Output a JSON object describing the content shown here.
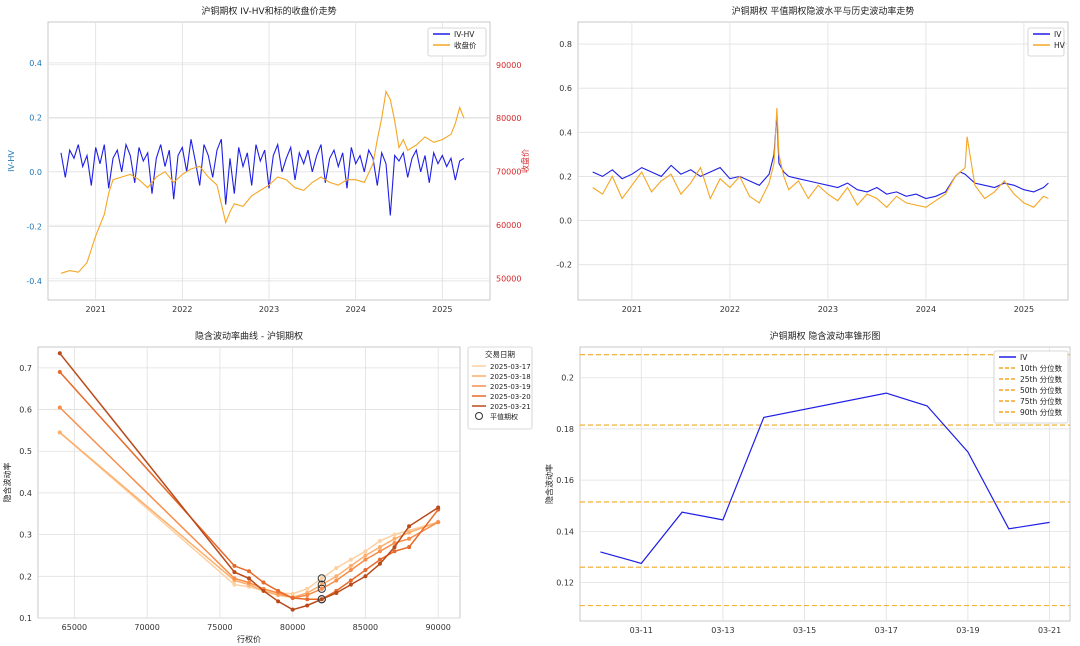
{
  "colors": {
    "blue": "#1f1fe6",
    "orange": "#f5a623",
    "red_axis": "#d62728",
    "blue_axis": "#1f77b4",
    "grid": "#e0e0e0",
    "spine": "#bbbbbb",
    "dates": [
      "#fdd0a2",
      "#fdae6b",
      "#f88d4a",
      "#e6692a",
      "#b94a1a"
    ]
  },
  "chart_data": [
    {
      "id": "c1",
      "type": "line",
      "title": "沪铜期权 IV-HV和标的收盘价走势",
      "ylabel": "IV-HV",
      "ylabel2": "收盘价",
      "xlim": [
        2020.45,
        2025.55
      ],
      "xticks": [
        "2021",
        "2022",
        "2023",
        "2024",
        "2025"
      ],
      "xtick_values": [
        2021,
        2022,
        2023,
        2024,
        2025
      ],
      "ylim": [
        -0.47,
        0.55
      ],
      "yticks": [
        -0.4,
        -0.2,
        0.0,
        0.2,
        0.4
      ],
      "y2lim": [
        46000,
        98000
      ],
      "y2ticks": [
        50000,
        60000,
        70000,
        80000,
        90000
      ],
      "grid": true,
      "legend_position": "top-right",
      "series": [
        {
          "name": "IV-HV",
          "axis": "left",
          "color_key": "blue",
          "x": [
            2020.6,
            2020.65,
            2020.7,
            2020.75,
            2020.8,
            2020.85,
            2020.9,
            2020.95,
            2021.0,
            2021.05,
            2021.1,
            2021.15,
            2021.2,
            2021.25,
            2021.3,
            2021.35,
            2021.4,
            2021.45,
            2021.5,
            2021.55,
            2021.6,
            2021.65,
            2021.7,
            2021.75,
            2021.8,
            2021.85,
            2021.9,
            2021.95,
            2022.0,
            2022.05,
            2022.1,
            2022.15,
            2022.2,
            2022.25,
            2022.3,
            2022.35,
            2022.4,
            2022.45,
            2022.5,
            2022.55,
            2022.6,
            2022.65,
            2022.7,
            2022.75,
            2022.8,
            2022.85,
            2022.9,
            2022.95,
            2023.0,
            2023.05,
            2023.1,
            2023.15,
            2023.2,
            2023.25,
            2023.3,
            2023.35,
            2023.4,
            2023.45,
            2023.5,
            2023.55,
            2023.6,
            2023.65,
            2023.7,
            2023.75,
            2023.8,
            2023.85,
            2023.9,
            2023.95,
            2024.0,
            2024.05,
            2024.1,
            2024.15,
            2024.2,
            2024.25,
            2024.3,
            2024.35,
            2024.4,
            2024.45,
            2024.5,
            2024.55,
            2024.6,
            2024.65,
            2024.7,
            2024.75,
            2024.8,
            2024.85,
            2024.9,
            2024.95,
            2025.0,
            2025.05,
            2025.1,
            2025.15,
            2025.2,
            2025.25
          ],
          "y": [
            0.07,
            -0.02,
            0.08,
            0.05,
            0.1,
            0.02,
            0.06,
            -0.05,
            0.09,
            0.03,
            0.1,
            -0.06,
            0.05,
            0.08,
            0.0,
            0.1,
            0.06,
            -0.04,
            0.09,
            0.04,
            0.07,
            -0.08,
            0.05,
            0.1,
            0.02,
            0.08,
            -0.1,
            0.06,
            0.09,
            0.0,
            0.12,
            0.04,
            -0.05,
            0.1,
            0.06,
            -0.02,
            0.08,
            0.12,
            -0.12,
            0.05,
            -0.08,
            0.09,
            0.02,
            0.07,
            -0.05,
            0.1,
            0.04,
            0.08,
            -0.06,
            0.06,
            0.1,
            0.0,
            0.05,
            0.09,
            -0.03,
            0.07,
            0.03,
            0.08,
            0.0,
            0.06,
            0.1,
            -0.04,
            0.05,
            0.08,
            0.02,
            0.07,
            -0.06,
            0.09,
            0.03,
            0.06,
            0.0,
            0.08,
            0.05,
            -0.05,
            0.07,
            0.03,
            -0.16,
            0.06,
            0.04,
            0.07,
            -0.02,
            0.05,
            0.08,
            0.0,
            0.06,
            -0.04,
            0.07,
            0.03,
            0.06,
            0.02,
            0.05,
            -0.03,
            0.04,
            0.05
          ]
        },
        {
          "name": "收盘价",
          "axis": "right",
          "color_key": "orange",
          "x": [
            2020.6,
            2020.7,
            2020.8,
            2020.9,
            2021.0,
            2021.1,
            2021.15,
            2021.2,
            2021.3,
            2021.4,
            2021.5,
            2021.6,
            2021.7,
            2021.8,
            2021.9,
            2022.0,
            2022.1,
            2022.2,
            2022.25,
            2022.3,
            2022.4,
            2022.45,
            2022.5,
            2022.55,
            2022.6,
            2022.7,
            2022.8,
            2022.9,
            2023.0,
            2023.1,
            2023.2,
            2023.3,
            2023.4,
            2023.5,
            2023.6,
            2023.7,
            2023.8,
            2023.9,
            2024.0,
            2024.1,
            2024.2,
            2024.25,
            2024.3,
            2024.35,
            2024.4,
            2024.45,
            2024.5,
            2024.55,
            2024.6,
            2024.7,
            2024.8,
            2024.9,
            2025.0,
            2025.1,
            2025.15,
            2025.2,
            2025.25
          ],
          "y": [
            51000,
            51500,
            51200,
            53000,
            58000,
            62000,
            66000,
            68500,
            69000,
            69500,
            68500,
            67000,
            69000,
            70000,
            68000,
            69500,
            70500,
            71000,
            70000,
            69000,
            67500,
            64000,
            60500,
            62500,
            64000,
            63500,
            65500,
            66500,
            67500,
            69000,
            68500,
            67000,
            66500,
            68000,
            69000,
            68000,
            67500,
            68500,
            68500,
            68000,
            71500,
            76000,
            80000,
            85000,
            83500,
            79500,
            74500,
            76000,
            74000,
            75000,
            76500,
            75500,
            76000,
            77000,
            79000,
            82000,
            80000
          ]
        }
      ]
    },
    {
      "id": "c2",
      "type": "line",
      "title": "沪铜期权 平值期权隐波水平与历史波动率走势",
      "xlim": [
        2020.45,
        2025.45
      ],
      "xticks": [
        "2021",
        "2022",
        "2023",
        "2024",
        "2025"
      ],
      "xtick_values": [
        2021,
        2022,
        2023,
        2024,
        2025
      ],
      "ylim": [
        -0.36,
        0.9
      ],
      "yticks": [
        -0.2,
        0.0,
        0.2,
        0.4,
        0.6,
        0.8
      ],
      "grid": true,
      "legend_position": "top-right",
      "series": [
        {
          "name": "IV",
          "color_key": "blue",
          "x": [
            2020.6,
            2020.7,
            2020.8,
            2020.9,
            2021.0,
            2021.1,
            2021.2,
            2021.3,
            2021.4,
            2021.5,
            2021.6,
            2021.7,
            2021.8,
            2021.9,
            2022.0,
            2022.1,
            2022.2,
            2022.3,
            2022.4,
            2022.45,
            2022.48,
            2022.5,
            2022.55,
            2022.6,
            2022.7,
            2022.8,
            2022.9,
            2023.0,
            2023.1,
            2023.2,
            2023.3,
            2023.4,
            2023.5,
            2023.6,
            2023.7,
            2023.8,
            2023.9,
            2024.0,
            2024.1,
            2024.2,
            2024.3,
            2024.35,
            2024.4,
            2024.5,
            2024.6,
            2024.7,
            2024.8,
            2024.9,
            2025.0,
            2025.1,
            2025.2,
            2025.25
          ],
          "y": [
            0.22,
            0.2,
            0.23,
            0.19,
            0.21,
            0.24,
            0.22,
            0.2,
            0.25,
            0.21,
            0.23,
            0.2,
            0.22,
            0.24,
            0.19,
            0.2,
            0.18,
            0.16,
            0.21,
            0.3,
            0.48,
            0.26,
            0.22,
            0.2,
            0.19,
            0.18,
            0.17,
            0.16,
            0.15,
            0.17,
            0.14,
            0.13,
            0.15,
            0.12,
            0.13,
            0.11,
            0.12,
            0.1,
            0.11,
            0.13,
            0.2,
            0.22,
            0.21,
            0.17,
            0.16,
            0.15,
            0.17,
            0.16,
            0.14,
            0.13,
            0.15,
            0.17
          ]
        },
        {
          "name": "HV",
          "color_key": "orange",
          "x": [
            2020.6,
            2020.7,
            2020.8,
            2020.9,
            2021.0,
            2021.1,
            2021.2,
            2021.3,
            2021.4,
            2021.5,
            2021.6,
            2021.7,
            2021.8,
            2021.9,
            2022.0,
            2022.1,
            2022.2,
            2022.3,
            2022.4,
            2022.45,
            2022.48,
            2022.5,
            2022.55,
            2022.6,
            2022.7,
            2022.8,
            2022.9,
            2023.0,
            2023.1,
            2023.2,
            2023.3,
            2023.4,
            2023.5,
            2023.6,
            2023.7,
            2023.8,
            2023.9,
            2024.0,
            2024.1,
            2024.2,
            2024.3,
            2024.4,
            2024.42,
            2024.5,
            2024.6,
            2024.7,
            2024.8,
            2024.9,
            2025.0,
            2025.1,
            2025.2,
            2025.25
          ],
          "y": [
            0.15,
            0.12,
            0.2,
            0.1,
            0.16,
            0.22,
            0.13,
            0.18,
            0.21,
            0.12,
            0.17,
            0.24,
            0.1,
            0.19,
            0.15,
            0.2,
            0.11,
            0.08,
            0.17,
            0.26,
            0.51,
            0.3,
            0.2,
            0.14,
            0.18,
            0.1,
            0.16,
            0.12,
            0.09,
            0.15,
            0.07,
            0.12,
            0.1,
            0.06,
            0.11,
            0.08,
            0.07,
            0.06,
            0.09,
            0.12,
            0.2,
            0.24,
            0.38,
            0.16,
            0.1,
            0.13,
            0.18,
            0.12,
            0.08,
            0.06,
            0.11,
            0.1
          ]
        }
      ]
    },
    {
      "id": "c3",
      "type": "line",
      "title": "隐含波动率曲线 - 沪铜期权",
      "xlabel": "行权价",
      "ylabel": "隐含波动率",
      "xlim": [
        62500,
        91500
      ],
      "xticks": [
        65000,
        70000,
        75000,
        80000,
        85000,
        90000
      ],
      "ylim": [
        0.1,
        0.75
      ],
      "yticks": [
        0.1,
        0.2,
        0.3,
        0.4,
        0.5,
        0.6,
        0.7
      ],
      "grid": true,
      "legend_title": "交易日期",
      "legend_position": "outside-right",
      "atm_label": "平值期权",
      "atm_strike": 82000,
      "series": [
        {
          "name": "2025-03-17",
          "x": [
            64000,
            76000,
            77000,
            78000,
            79000,
            80000,
            81000,
            82000,
            83000,
            84000,
            85000,
            86000,
            87000,
            88000,
            90000
          ],
          "y": [
            0.545,
            0.18,
            0.175,
            0.165,
            0.16,
            0.158,
            0.17,
            0.195,
            0.22,
            0.24,
            0.26,
            0.285,
            0.3,
            0.31,
            0.33
          ]
        },
        {
          "name": "2025-03-18",
          "x": [
            64000,
            76000,
            77000,
            78000,
            79000,
            80000,
            81000,
            82000,
            83000,
            84000,
            85000,
            86000,
            87000,
            88000,
            90000
          ],
          "y": [
            0.545,
            0.19,
            0.18,
            0.165,
            0.155,
            0.15,
            0.16,
            0.18,
            0.2,
            0.225,
            0.25,
            0.27,
            0.29,
            0.305,
            0.33
          ]
        },
        {
          "name": "2025-03-19",
          "x": [
            64000,
            76000,
            77000,
            78000,
            79000,
            80000,
            81000,
            82000,
            83000,
            84000,
            85000,
            86000,
            87000,
            88000,
            90000
          ],
          "y": [
            0.605,
            0.195,
            0.185,
            0.17,
            0.16,
            0.148,
            0.155,
            0.17,
            0.19,
            0.215,
            0.24,
            0.26,
            0.28,
            0.29,
            0.33
          ]
        },
        {
          "name": "2025-03-20",
          "x": [
            64000,
            76000,
            77000,
            78000,
            79000,
            80000,
            81000,
            82000,
            83000,
            84000,
            85000,
            86000,
            87000,
            88000,
            90000
          ],
          "y": [
            0.69,
            0.225,
            0.212,
            0.185,
            0.165,
            0.148,
            0.145,
            0.145,
            0.165,
            0.19,
            0.215,
            0.24,
            0.26,
            0.27,
            0.36
          ]
        },
        {
          "name": "2025-03-21",
          "x": [
            64000,
            76000,
            77000,
            78000,
            79000,
            80000,
            81000,
            82000,
            83000,
            84000,
            85000,
            86000,
            87000,
            88000,
            90000
          ],
          "y": [
            0.735,
            0.21,
            0.195,
            0.165,
            0.14,
            0.12,
            0.13,
            0.145,
            0.16,
            0.18,
            0.2,
            0.23,
            0.27,
            0.32,
            0.365
          ]
        }
      ]
    },
    {
      "id": "c4",
      "type": "line",
      "title": "沪铜期权 隐含波动率锥形图",
      "ylabel": "隐含波动率",
      "xlim": [
        9.5,
        21.5
      ],
      "xtick_values": [
        11,
        13,
        15,
        17,
        19,
        21
      ],
      "xticks": [
        "03-11",
        "03-13",
        "03-15",
        "03-17",
        "03-19",
        "03-21"
      ],
      "ylim": [
        0.105,
        0.212
      ],
      "yticks": [
        0.12,
        0.14,
        0.16,
        0.18,
        0.2
      ],
      "grid": true,
      "legend_position": "top-right",
      "series": [
        {
          "name": "IV",
          "color_key": "blue",
          "x": [
            10,
            11,
            12,
            13,
            14,
            17,
            18,
            19,
            20,
            21
          ],
          "y": [
            0.132,
            0.1275,
            0.1475,
            0.1445,
            0.1845,
            0.194,
            0.189,
            0.171,
            0.141,
            0.1435
          ]
        }
      ],
      "percentiles": [
        {
          "name": "10th 分位数",
          "value": 0.111
        },
        {
          "name": "25th 分位数",
          "value": 0.126
        },
        {
          "name": "50th 分位数",
          "value": 0.1515
        },
        {
          "name": "75th 分位数",
          "value": 0.1815
        },
        {
          "name": "90th 分位数",
          "value": 0.209
        }
      ]
    }
  ]
}
